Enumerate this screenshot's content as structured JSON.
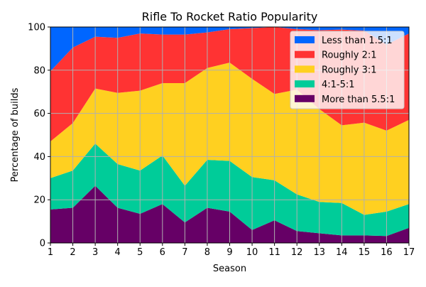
{
  "chart_data": {
    "type": "area",
    "stacked": true,
    "title": "Rifle To Rocket Ratio Popularity",
    "xlabel": "Season",
    "ylabel": "Percentage of builds",
    "x": [
      1,
      2,
      3,
      4,
      5,
      6,
      7,
      8,
      9,
      10,
      11,
      12,
      13,
      14,
      15,
      16,
      17
    ],
    "xlim": [
      1,
      17
    ],
    "ylim": [
      0,
      100
    ],
    "yticks": [
      0,
      20,
      40,
      60,
      80,
      100
    ],
    "grid": true,
    "legend_position": "top-right",
    "series": [
      {
        "name": "More than 5.5:1",
        "color": "#660066",
        "values": [
          15.5,
          16.3,
          26.5,
          16.3,
          13.5,
          18,
          9.5,
          16.3,
          14.5,
          6,
          10.5,
          5.5,
          4.5,
          3.5,
          3.5,
          3.2,
          7
        ]
      },
      {
        "name": "4:1-5:1",
        "color": "#00cc99",
        "values": [
          14.5,
          17.2,
          19.5,
          20.2,
          20,
          22.5,
          17,
          22.2,
          23.5,
          24.5,
          18.5,
          17,
          14.5,
          15,
          9.5,
          11.3,
          11
        ]
      },
      {
        "name": "Roughly 3:1",
        "color": "#ffd020",
        "values": [
          17,
          22,
          25.5,
          33,
          37,
          33.5,
          47.5,
          42.5,
          45.5,
          45.5,
          40,
          48.5,
          43,
          36,
          42.7,
          37.5,
          39
        ]
      },
      {
        "name": "Roughly 2:1",
        "color": "#ff3333",
        "values": [
          32.5,
          35,
          24,
          25.5,
          26.5,
          22.5,
          22.5,
          16.5,
          15.5,
          23.5,
          31,
          28,
          36.5,
          44.3,
          42.6,
          39.8,
          40
        ]
      },
      {
        "name": "Less than 1.5:1",
        "color": "#0066ff",
        "values": [
          20.5,
          9.5,
          4.5,
          5,
          3,
          3.5,
          3.5,
          2.5,
          1,
          0.5,
          0,
          1,
          1.5,
          1.2,
          1.7,
          8.2,
          3
        ]
      }
    ]
  }
}
